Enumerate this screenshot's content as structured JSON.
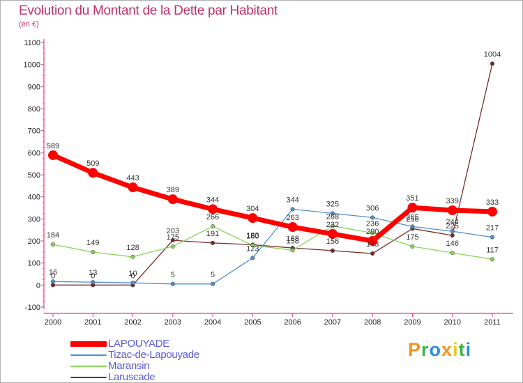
{
  "chart_data": {
    "type": "line",
    "title": "Evolution du Montant de la Dette par Habitant",
    "unit_label": "(en €)",
    "x": [
      "2000",
      "2001",
      "2002",
      "2003",
      "2004",
      "2005",
      "2006",
      "2007",
      "2008",
      "2009",
      "2010",
      "2011"
    ],
    "yticks": [
      "1100",
      "1000",
      "900",
      "800",
      "700",
      "600",
      "500",
      "400",
      "300",
      "200",
      "100",
      "0",
      "-100"
    ],
    "ylim": [
      -100,
      1100
    ],
    "grid": false,
    "legend_position": "bottom-left",
    "series": [
      {
        "name": "LAPOUYADE",
        "color": "#ff0000",
        "values": [
          589,
          509,
          443,
          389,
          344,
          304,
          263,
          232,
          200,
          351,
          339,
          333
        ]
      },
      {
        "name": "Tizac-de-Lapouyade",
        "color": "#4d90d0",
        "values": [
          16,
          13,
          10,
          5,
          5,
          123,
          344,
          325,
          306,
          265,
          244,
          217
        ]
      },
      {
        "name": "Maransin",
        "color": "#88d45a",
        "values": [
          184,
          149,
          128,
          175,
          266,
          180,
          158,
          268,
          236,
          175,
          146,
          117
        ]
      },
      {
        "name": "Laruscade",
        "color": "#7a2a2a",
        "values": [
          0,
          0,
          0,
          203,
          191,
          183,
          168,
          156,
          143,
          256,
          225,
          1004
        ]
      }
    ]
  },
  "logo": {
    "text": "Proxiti",
    "colors": [
      "#f7941d",
      "#3db54a",
      "#2e8fd6",
      "#f7941d",
      "#e6cc2c",
      "#3db54a",
      "#2e8fd6"
    ]
  }
}
